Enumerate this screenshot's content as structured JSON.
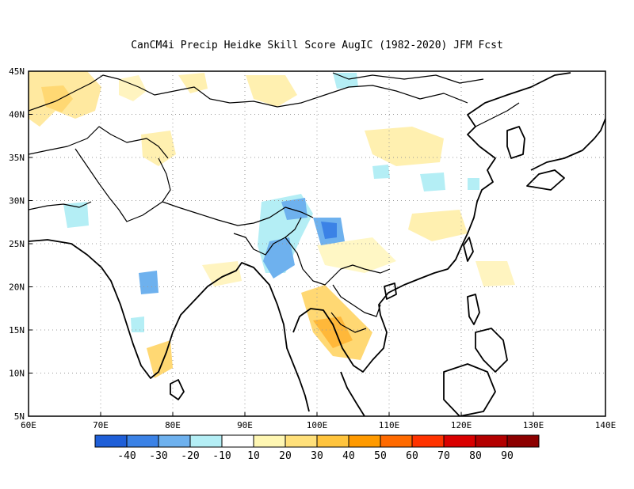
{
  "title": "CanCM4i Precip Heidke Skill Score AugIC (1982-2020) JFM Fcst",
  "map": {
    "lon_labels": [
      "60E",
      "70E",
      "80E",
      "90E",
      "100E",
      "110E",
      "120E",
      "130E",
      "140E"
    ],
    "lat_labels": [
      "5N",
      "10N",
      "15N",
      "20N",
      "25N",
      "30N",
      "35N",
      "40N",
      "45N"
    ],
    "lon_range": [
      60,
      140
    ],
    "lat_range": [
      5,
      45
    ],
    "gridlines": "dotted"
  },
  "colorbar": {
    "labels": [
      "-40",
      "-30",
      "-20",
      "-10",
      "10",
      "20",
      "30",
      "40",
      "50",
      "60",
      "70",
      "80",
      "90"
    ],
    "colors": [
      "#1f5fd8",
      "#3b82e6",
      "#6eb1ee",
      "#b4eef5",
      "#ffffff",
      "#fff7b3",
      "#ffe07a",
      "#ffc43d",
      "#ff9a00",
      "#ff6a00",
      "#ff3300",
      "#d90000",
      "#b30000",
      "#8c0000"
    ]
  }
}
